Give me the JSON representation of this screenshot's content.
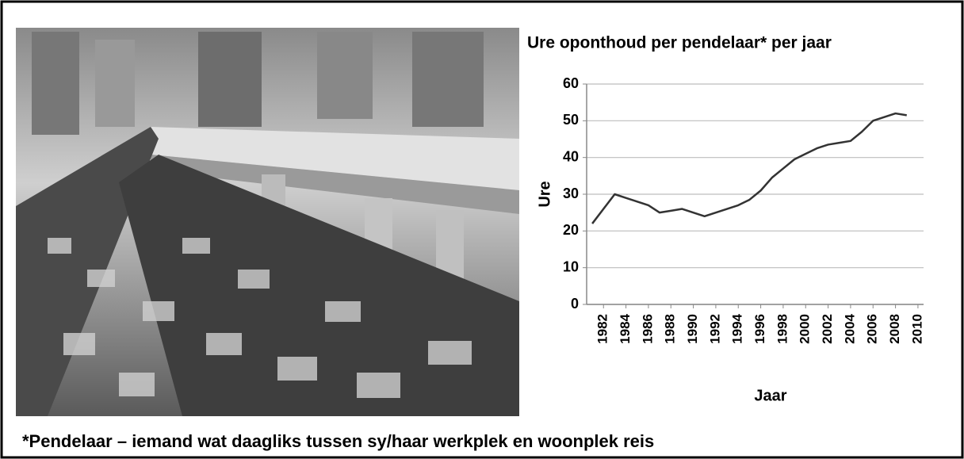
{
  "chart_data": {
    "type": "line",
    "title": "Ure oponthoud per pendelaar* per jaar",
    "y_label": "Ure",
    "x_label": "Jaar",
    "x": [
      1981,
      1982,
      1983,
      1984,
      1985,
      1986,
      1987,
      1988,
      1989,
      1990,
      1991,
      1992,
      1993,
      1994,
      1995,
      1996,
      1997,
      1998,
      1999,
      2000,
      2001,
      2002,
      2003,
      2004,
      2005,
      2006,
      2007,
      2008,
      2009
    ],
    "series": [
      {
        "name": "Ure",
        "color": "#333333",
        "values": [
          22,
          26,
          30,
          29,
          28,
          27,
          25,
          25.5,
          26,
          25,
          24,
          25,
          26,
          27,
          28.5,
          31,
          34.5,
          37,
          39.5,
          41,
          42.5,
          43.5,
          44,
          44.5,
          47,
          50,
          51,
          52,
          51.5
        ]
      }
    ],
    "xlim": [
      1980.5,
      2010.5
    ],
    "xticks": [
      1982,
      1984,
      1986,
      1988,
      1990,
      1992,
      1994,
      1996,
      1998,
      2000,
      2002,
      2004,
      2006,
      2008,
      2010
    ],
    "ylim": [
      0,
      60
    ],
    "yticks": [
      0,
      10,
      20,
      30,
      40,
      50,
      60
    ],
    "grid": true
  },
  "footnote": "*Pendelaar – iemand wat daagliks tussen sy/haar werkplek en woonplek reis"
}
